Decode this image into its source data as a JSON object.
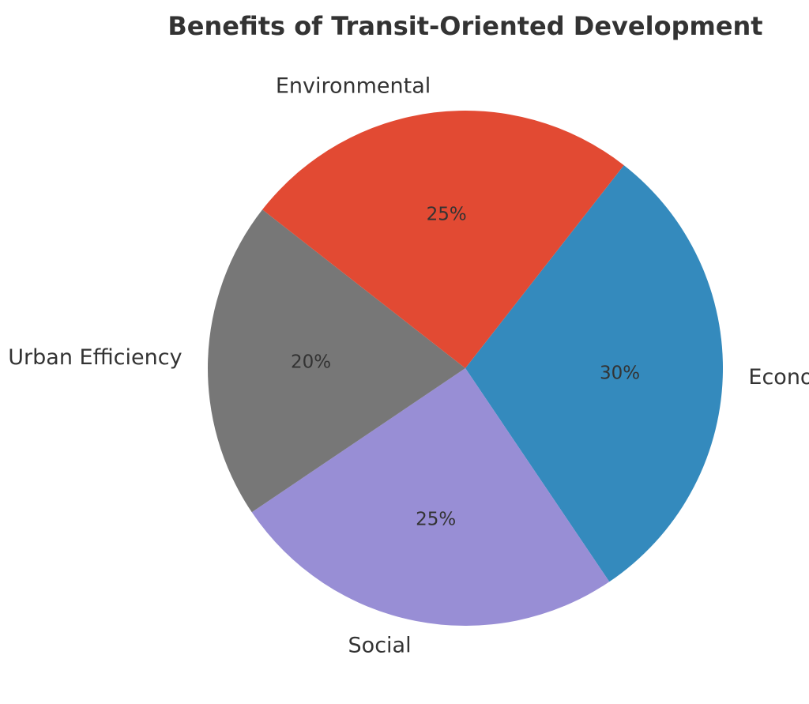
{
  "chart_data": {
    "type": "pie",
    "title": "Benefits of Transit-Oriented Development",
    "slices": [
      {
        "label": "Economic",
        "value": 30,
        "pct_label": "30%",
        "color": "#348abd"
      },
      {
        "label": "Social",
        "value": 25,
        "pct_label": "25%",
        "color": "#988ed5"
      },
      {
        "label": "Urban Efficiency",
        "value": 20,
        "pct_label": "20%",
        "color": "#777777"
      },
      {
        "label": "Environmental",
        "value": 25,
        "pct_label": "25%",
        "color": "#e24a33"
      }
    ],
    "legend": "none"
  }
}
